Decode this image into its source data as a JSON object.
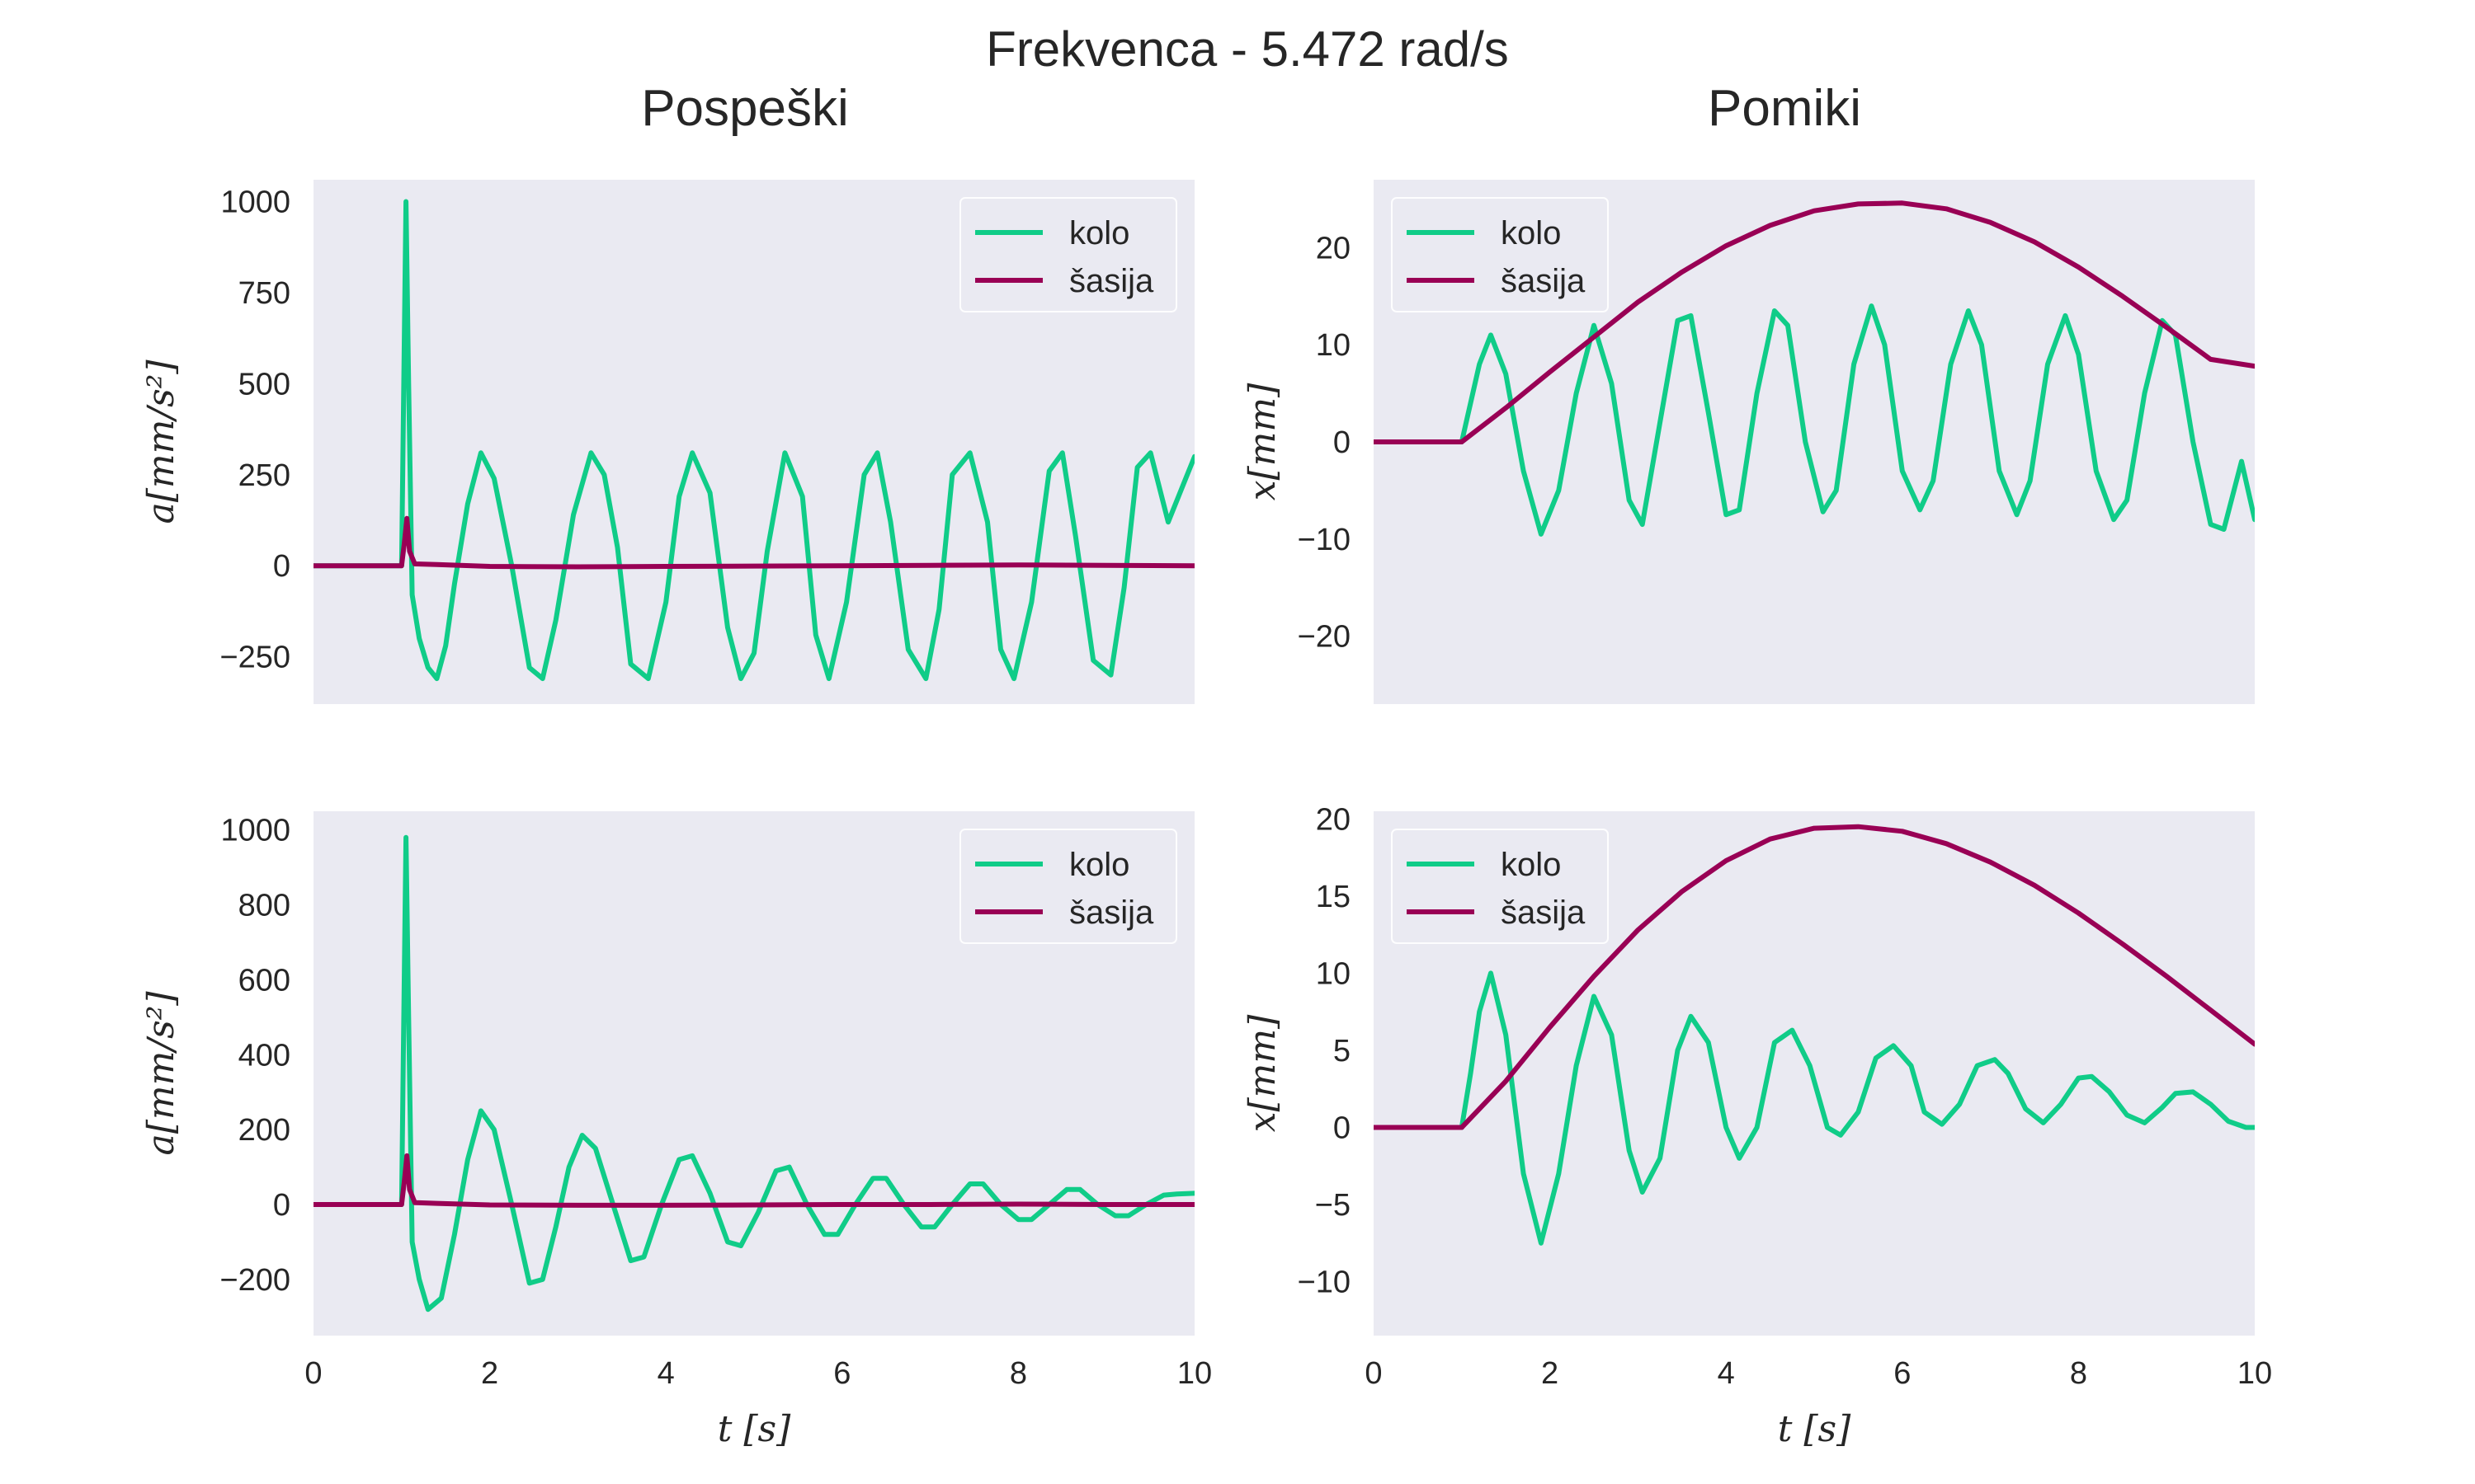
{
  "figure": {
    "title": "Frekvenca - 5.472 rad/s",
    "column_titles": [
      "Pospeški",
      "Pomiki"
    ]
  },
  "colors": {
    "kolo": "#10cc88",
    "sasija": "#990055",
    "panel_bg": "#eaeaf2",
    "text": "#262626"
  },
  "chart_data": [
    {
      "type": "line",
      "panel": "top-left",
      "title": "",
      "xlabel": "",
      "ylabel": "a[mm/s²]",
      "xlim": [
        0,
        10
      ],
      "ylim": [
        -380,
        1060
      ],
      "xticks": [],
      "yticks": [
        -250,
        0,
        250,
        500,
        750,
        1000
      ],
      "ytick_labels": [
        "−250",
        "0",
        "250",
        "500",
        "750",
        "1000"
      ],
      "grid": false,
      "legend": "top-right",
      "series": [
        {
          "name": "kolo",
          "x": [
            0,
            1.0,
            1.02,
            1.05,
            1.08,
            1.12,
            1.2,
            1.3,
            1.4,
            1.5,
            1.6,
            1.75,
            1.9,
            2.05,
            2.25,
            2.45,
            2.6,
            2.75,
            2.95,
            3.15,
            3.3,
            3.45,
            3.6,
            3.8,
            4.0,
            4.15,
            4.3,
            4.5,
            4.7,
            4.85,
            5.0,
            5.15,
            5.35,
            5.55,
            5.7,
            5.85,
            6.05,
            6.25,
            6.4,
            6.55,
            6.75,
            6.95,
            7.1,
            7.25,
            7.45,
            7.65,
            7.8,
            7.95,
            8.15,
            8.35,
            8.5,
            8.65,
            8.85,
            9.05,
            9.2,
            9.35,
            9.5,
            9.7,
            9.9,
            10.0
          ],
          "y": [
            0,
            0,
            400,
            1000,
            500,
            -80,
            -200,
            -280,
            -310,
            -220,
            -50,
            170,
            310,
            240,
            0,
            -280,
            -310,
            -150,
            140,
            310,
            250,
            50,
            -270,
            -310,
            -100,
            190,
            310,
            200,
            -170,
            -310,
            -240,
            40,
            310,
            190,
            -190,
            -310,
            -100,
            250,
            310,
            120,
            -230,
            -310,
            -120,
            250,
            310,
            120,
            -230,
            -310,
            -100,
            260,
            310,
            80,
            -260,
            -300,
            -60,
            270,
            310,
            120,
            240,
            300
          ]
        },
        {
          "name": "šasija",
          "x": [
            0,
            1.0,
            1.03,
            1.06,
            1.09,
            1.15,
            1.4,
            2.0,
            3.0,
            4.0,
            5.0,
            6.0,
            7.0,
            8.0,
            9.0,
            10.0
          ],
          "y": [
            0,
            0,
            60,
            130,
            40,
            5,
            3,
            -2,
            -3,
            -2,
            -1,
            0,
            1,
            2,
            1,
            0
          ]
        }
      ]
    },
    {
      "type": "line",
      "panel": "top-right",
      "title": "",
      "xlabel": "",
      "ylabel": "x[mm]",
      "xlim": [
        0,
        10
      ],
      "ylim": [
        -27,
        27
      ],
      "xticks": [],
      "yticks": [
        -20,
        -10,
        0,
        10,
        20
      ],
      "ytick_labels": [
        "−20",
        "−10",
        "0",
        "10",
        "20"
      ],
      "grid": false,
      "legend": "top-left",
      "series": [
        {
          "name": "kolo",
          "x": [
            0,
            1.0,
            1.1,
            1.2,
            1.33,
            1.5,
            1.7,
            1.9,
            2.1,
            2.3,
            2.5,
            2.7,
            2.9,
            3.05,
            3.25,
            3.45,
            3.6,
            3.8,
            4.0,
            4.15,
            4.35,
            4.55,
            4.7,
            4.9,
            5.1,
            5.25,
            5.45,
            5.65,
            5.8,
            6.0,
            6.2,
            6.35,
            6.55,
            6.75,
            6.9,
            7.1,
            7.3,
            7.45,
            7.65,
            7.85,
            8.0,
            8.2,
            8.4,
            8.55,
            8.75,
            8.95,
            9.1,
            9.3,
            9.5,
            9.65,
            9.85,
            10.0
          ],
          "y": [
            0,
            0,
            4,
            8,
            11,
            7,
            -3,
            -9.5,
            -5,
            5,
            12,
            6,
            -6,
            -8.5,
            2,
            12.5,
            13,
            3,
            -7.5,
            -7,
            5,
            13.5,
            12,
            0,
            -7.2,
            -5,
            8,
            14,
            10,
            -3,
            -7,
            -4,
            8,
            13.5,
            10,
            -3,
            -7.5,
            -4,
            8,
            13,
            9,
            -3,
            -8,
            -6,
            5,
            12.5,
            11,
            0,
            -8.5,
            -9,
            -2,
            -8
          ]
        },
        {
          "name": "šasija",
          "x": [
            0,
            1.0,
            1.5,
            2.0,
            2.5,
            3.0,
            3.5,
            4.0,
            4.5,
            5.0,
            5.5,
            6.0,
            6.5,
            7.0,
            7.5,
            8.0,
            8.5,
            9.0,
            9.5,
            10.0
          ],
          "y": [
            0,
            0,
            3.5,
            7.2,
            10.8,
            14.4,
            17.5,
            20.2,
            22.3,
            23.8,
            24.5,
            24.6,
            24.0,
            22.6,
            20.6,
            18.0,
            15.0,
            11.8,
            8.5,
            7.8
          ]
        }
      ]
    },
    {
      "type": "line",
      "panel": "bottom-left",
      "title": "",
      "xlabel": "t [s]",
      "ylabel": "a[mm/s²]",
      "xlim": [
        0,
        10
      ],
      "ylim": [
        -350,
        1050
      ],
      "xticks": [
        0,
        2,
        4,
        6,
        8,
        10
      ],
      "yticks": [
        -200,
        0,
        200,
        400,
        600,
        800,
        1000
      ],
      "ytick_labels": [
        "−200",
        "0",
        "200",
        "400",
        "600",
        "800",
        "1000"
      ],
      "grid": false,
      "legend": "top-right",
      "series": [
        {
          "name": "kolo",
          "x": [
            0,
            1.0,
            1.02,
            1.05,
            1.08,
            1.12,
            1.2,
            1.3,
            1.45,
            1.6,
            1.75,
            1.9,
            2.05,
            2.25,
            2.45,
            2.6,
            2.75,
            2.9,
            3.05,
            3.2,
            3.4,
            3.6,
            3.75,
            3.95,
            4.15,
            4.3,
            4.5,
            4.7,
            4.85,
            5.05,
            5.25,
            5.4,
            5.6,
            5.8,
            5.95,
            6.15,
            6.35,
            6.5,
            6.7,
            6.9,
            7.05,
            7.25,
            7.45,
            7.6,
            7.8,
            8.0,
            8.15,
            8.35,
            8.55,
            8.7,
            8.9,
            9.1,
            9.25,
            9.45,
            9.65,
            9.8,
            10.0
          ],
          "y": [
            0,
            0,
            400,
            980,
            500,
            -100,
            -200,
            -280,
            -250,
            -80,
            120,
            250,
            200,
            0,
            -210,
            -200,
            -60,
            100,
            185,
            150,
            0,
            -150,
            -140,
            0,
            120,
            130,
            30,
            -100,
            -110,
            -20,
            90,
            100,
            0,
            -80,
            -80,
            0,
            70,
            70,
            0,
            -60,
            -60,
            0,
            55,
            55,
            0,
            -40,
            -40,
            0,
            40,
            40,
            0,
            -30,
            -30,
            0,
            25,
            28,
            30
          ]
        },
        {
          "name": "šasija",
          "x": [
            0,
            1.0,
            1.03,
            1.06,
            1.09,
            1.15,
            1.4,
            2.0,
            3.0,
            4.0,
            5.0,
            6.0,
            7.0,
            8.0,
            9.0,
            10.0
          ],
          "y": [
            0,
            0,
            60,
            130,
            40,
            5,
            3,
            -1,
            -2,
            -2,
            -1,
            0,
            0,
            1,
            0,
            0
          ]
        }
      ]
    },
    {
      "type": "line",
      "panel": "bottom-right",
      "title": "",
      "xlabel": "t [s]",
      "ylabel": "x[mm]",
      "xlim": [
        0,
        10
      ],
      "ylim": [
        -13.5,
        20.5
      ],
      "xticks": [
        0,
        2,
        4,
        6,
        8,
        10
      ],
      "yticks": [
        -10,
        -5,
        0,
        5,
        10,
        15,
        20
      ],
      "ytick_labels": [
        "−10",
        "−5",
        "0",
        "5",
        "10",
        "15",
        "20"
      ],
      "grid": false,
      "legend": "top-left",
      "series": [
        {
          "name": "kolo",
          "x": [
            0,
            1.0,
            1.1,
            1.2,
            1.33,
            1.5,
            1.7,
            1.9,
            2.1,
            2.3,
            2.5,
            2.7,
            2.9,
            3.05,
            3.25,
            3.45,
            3.6,
            3.8,
            4.0,
            4.15,
            4.35,
            4.55,
            4.75,
            4.95,
            5.15,
            5.3,
            5.5,
            5.7,
            5.9,
            6.1,
            6.25,
            6.45,
            6.65,
            6.85,
            7.05,
            7.2,
            7.4,
            7.6,
            7.8,
            8.0,
            8.15,
            8.35,
            8.55,
            8.75,
            8.95,
            9.1,
            9.3,
            9.5,
            9.7,
            9.9,
            10.0
          ],
          "y": [
            0,
            0,
            3.5,
            7.5,
            10,
            6,
            -3,
            -7.5,
            -3,
            4,
            8.5,
            6,
            -1.5,
            -4.2,
            -2,
            5,
            7.2,
            5.5,
            0,
            -2,
            0,
            5.5,
            6.3,
            4,
            0,
            -0.5,
            1,
            4.5,
            5.3,
            4,
            1,
            0.2,
            1.5,
            4,
            4.4,
            3.5,
            1.2,
            0.3,
            1.5,
            3.2,
            3.3,
            2.3,
            0.8,
            0.3,
            1.3,
            2.2,
            2.3,
            1.5,
            0.4,
            0,
            0
          ]
        },
        {
          "name": "šasija",
          "x": [
            0,
            1.0,
            1.5,
            2.0,
            2.5,
            3.0,
            3.5,
            4.0,
            4.5,
            5.0,
            5.5,
            6.0,
            6.5,
            7.0,
            7.5,
            8.0,
            8.5,
            9.0,
            9.5,
            10.0
          ],
          "y": [
            0,
            0,
            3.0,
            6.5,
            9.8,
            12.8,
            15.3,
            17.3,
            18.7,
            19.4,
            19.5,
            19.2,
            18.4,
            17.2,
            15.7,
            13.9,
            11.9,
            9.8,
            7.6,
            5.4
          ]
        }
      ]
    }
  ]
}
